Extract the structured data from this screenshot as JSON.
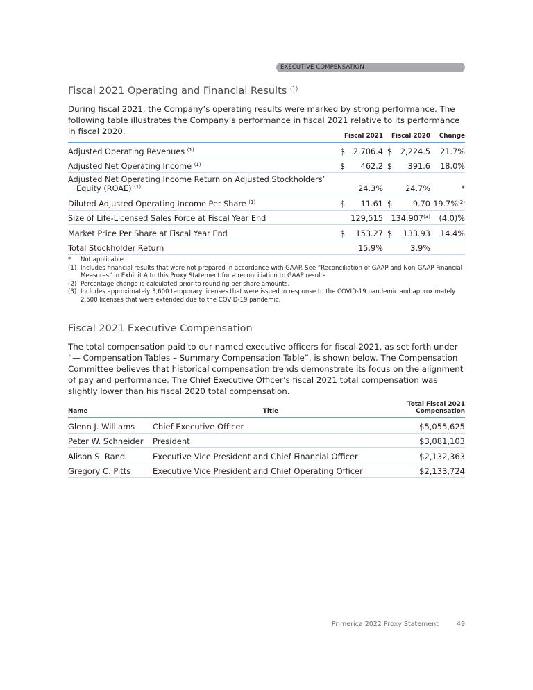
{
  "header": {
    "section": "EXECUTIVE COMPENSATION"
  },
  "results": {
    "title": "Fiscal 2021 Operating and Financial Results",
    "title_note": "(1)",
    "intro": "During fiscal 2021, the Company’s operating results were marked by strong performance. The following table illustrates the Company’s performance in fiscal 2021 relative to its performance in fiscal 2020.",
    "columns": [
      "Fiscal 2021",
      "Fiscal 2020",
      "Change"
    ],
    "rows": [
      {
        "label": "Adjusted Operating Revenues",
        "note": "(1)",
        "f21_cur": "$",
        "f21": "2,706.4",
        "f20_cur": "$",
        "f20": "2,224.5",
        "change": "21.7%",
        "change_note": ""
      },
      {
        "label": "Adjusted Net Operating Income",
        "note": "(1)",
        "f21_cur": "$",
        "f21": "462.2",
        "f20_cur": "$",
        "f20": "391.6",
        "change": "18.0%",
        "change_note": ""
      },
      {
        "label": "Adjusted Net Operating Income Return on Adjusted Stockholders’",
        "label2": "Equity (ROAE)",
        "note": "(1)",
        "f21_cur": "",
        "f21": "24.3%",
        "f20_cur": "",
        "f20": "24.7%",
        "change": "*",
        "change_note": ""
      },
      {
        "label": "Diluted Adjusted Operating Income Per Share",
        "note": "(1)",
        "f21_cur": "$",
        "f21": "11.61",
        "f20_cur": "$",
        "f20": "9.70",
        "change": "19.7%",
        "change_note": "(2)"
      },
      {
        "label": "Size of Life-Licensed Sales Force at Fiscal Year End",
        "note": "",
        "f21_cur": "",
        "f21": "129,515",
        "f20_cur": "",
        "f20": "134,907",
        "f20_note": "(3)",
        "change": "(4.0)%",
        "change_note": ""
      },
      {
        "label": "Market Price Per Share at Fiscal Year End",
        "note": "",
        "f21_cur": "$",
        "f21": "153.27",
        "f20_cur": "$",
        "f20": "133.93",
        "change": "14.4%",
        "change_note": ""
      },
      {
        "label": "Total Stockholder Return",
        "note": "",
        "f21_cur": "",
        "f21": "15.9%",
        "f20_cur": "",
        "f20": "3.9%",
        "change": "",
        "change_note": ""
      }
    ],
    "footnotes": [
      {
        "mark": "*",
        "text": "Not applicable"
      },
      {
        "mark": "(1)",
        "text": "Includes financial results that were not prepared in accordance with GAAP. See “Reconciliation of GAAP and Non-GAAP Financial Measures” in Exhibit A to this Proxy Statement for a reconciliation to GAAP results."
      },
      {
        "mark": "(2)",
        "text": "Percentage change is calculated prior to rounding per share amounts."
      },
      {
        "mark": "(3)",
        "text": "Includes approximately 3,600 temporary licenses that were issued in response to the COVID-19 pandemic and approximately 2,500 licenses that were extended due to the COVID-19 pandemic."
      }
    ]
  },
  "comp": {
    "title": "Fiscal 2021 Executive Compensation",
    "intro": "The total compensation paid to our named executive officers for fiscal 2021, as set forth under “— Compensation Tables – Summary Compensation Table”, is shown below. The Compensation Committee believes that historical compensation trends demonstrate its focus on the alignment of pay and performance. The Chief Executive Officer’s fiscal 2021 total compensation was slightly lower than his fiscal 2020 total compensation.",
    "columns": [
      "Name",
      "Title",
      "Total Fiscal 2021",
      "Compensation"
    ],
    "rows": [
      {
        "name": "Glenn J. Williams",
        "title": "Chief Executive Officer",
        "total": "$5,055,625"
      },
      {
        "name": "Peter W. Schneider",
        "title": "President",
        "total": "$3,081,103"
      },
      {
        "name": "Alison S. Rand",
        "title": "Executive Vice President and Chief Financial Officer",
        "total": "$2,132,363"
      },
      {
        "name": "Gregory C. Pitts",
        "title": "Executive Vice President and Chief Operating Officer",
        "total": "$2,133,724"
      }
    ]
  },
  "footer": {
    "publication": "Primerica 2022 Proxy Statement",
    "page": "49"
  }
}
